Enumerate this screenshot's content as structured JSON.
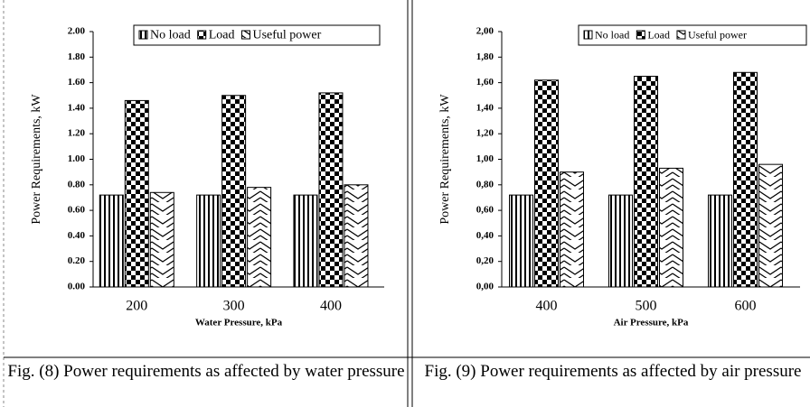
{
  "chart_data": [
    {
      "type": "bar",
      "xlabel": "Water Pressure, kPa",
      "ylabel": "Power Requirements, kW",
      "categories": [
        "200",
        "300",
        "400"
      ],
      "series": [
        {
          "name": "No load",
          "color": "#000000",
          "pattern": "vertical-stripes",
          "values": [
            0.72,
            0.72,
            0.72
          ]
        },
        {
          "name": "Load",
          "color": "#000000",
          "pattern": "checker",
          "values": [
            1.46,
            1.5,
            1.52
          ]
        },
        {
          "name": "Useful power",
          "color": "#000000",
          "pattern": "zigzag",
          "values": [
            0.74,
            0.78,
            0.8
          ]
        }
      ],
      "ylim": [
        0,
        2
      ],
      "yticks": [
        {
          "value": 0,
          "label": "0.00"
        },
        {
          "value": 0.2,
          "label": "0.20"
        },
        {
          "value": 0.4,
          "label": "0.40"
        },
        {
          "value": 0.6,
          "label": "0.60"
        },
        {
          "value": 0.8,
          "label": "0.80"
        },
        {
          "value": 1,
          "label": "1.00"
        },
        {
          "value": 1.2,
          "label": "1.20"
        },
        {
          "value": 1.4,
          "label": "1.40"
        },
        {
          "value": 1.6,
          "label": "1.60"
        },
        {
          "value": 1.8,
          "label": "1.80"
        },
        {
          "value": 2,
          "label": "2.00"
        }
      ],
      "legend": "top",
      "caption": "Fig. (8) Power requirements as affected by water pressure"
    },
    {
      "type": "bar",
      "xlabel": "Air Pressure, kPa",
      "ylabel": "Power Requirements, kW",
      "categories": [
        "400",
        "500",
        "600"
      ],
      "series": [
        {
          "name": "No load",
          "color": "#000000",
          "pattern": "vertical-stripes",
          "values": [
            0.72,
            0.72,
            0.72
          ]
        },
        {
          "name": "Load",
          "color": "#000000",
          "pattern": "checker",
          "values": [
            1.62,
            1.65,
            1.68
          ]
        },
        {
          "name": "Useful power",
          "color": "#000000",
          "pattern": "zigzag",
          "values": [
            0.9,
            0.93,
            0.96
          ]
        }
      ],
      "ylim": [
        0,
        2
      ],
      "yticks": [
        {
          "value": 0,
          "label": "0,00"
        },
        {
          "value": 0.2,
          "label": "0,20"
        },
        {
          "value": 0.4,
          "label": "0,40"
        },
        {
          "value": 0.6,
          "label": "0,60"
        },
        {
          "value": 0.8,
          "label": "0,80"
        },
        {
          "value": 1,
          "label": "1,00"
        },
        {
          "value": 1.2,
          "label": "1,20"
        },
        {
          "value": 1.4,
          "label": "1,40"
        },
        {
          "value": 1.6,
          "label": "1,60"
        },
        {
          "value": 1.8,
          "label": "1,80"
        },
        {
          "value": 2,
          "label": "2,00"
        }
      ],
      "legend": "top",
      "caption": "Fig. (9) Power requirements as affected by air pressure"
    }
  ]
}
